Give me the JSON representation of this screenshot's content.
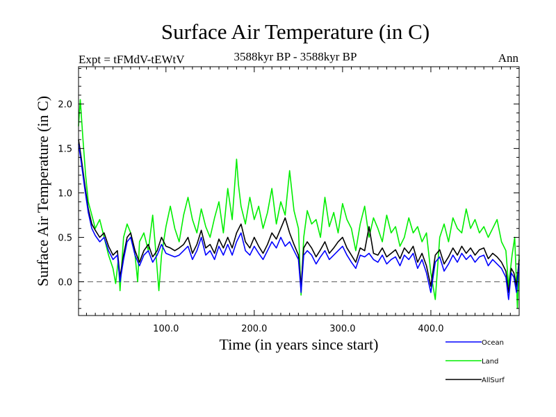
{
  "chart_data": {
    "type": "line",
    "title": "Surface Air Temperature (in C)",
    "subtitle_left": "Expt = tFMdV-tEWtV",
    "subtitle_center": "3588kyr BP - 3588kyr BP",
    "subtitle_right": "Ann",
    "xlabel": "Time (in years since start)",
    "ylabel": "Surface Air Temperature (in C)",
    "xlim": [
      1,
      500
    ],
    "ylim": [
      -0.38,
      2.42
    ],
    "xticks": [
      100,
      200,
      300,
      400
    ],
    "xtick_labels": [
      "100.0",
      "200.0",
      "300.0",
      "400.0"
    ],
    "yticks": [
      0.0,
      0.5,
      1.0,
      1.5,
      2.0
    ],
    "ytick_labels": [
      "0.0",
      "0.5",
      "1.0",
      "1.5",
      "2.0"
    ],
    "reference_line": 0.0,
    "legend_position": "bottom-right",
    "series": [
      {
        "name": "Ocean",
        "color": "#0000ff",
        "x": [
          1,
          4,
          8,
          12,
          16,
          20,
          25,
          30,
          35,
          40,
          45,
          48,
          52,
          56,
          60,
          65,
          70,
          75,
          80,
          85,
          90,
          95,
          100,
          105,
          110,
          115,
          120,
          125,
          130,
          135,
          140,
          145,
          150,
          155,
          160,
          165,
          170,
          175,
          180,
          185,
          190,
          195,
          200,
          205,
          210,
          215,
          220,
          225,
          230,
          235,
          240,
          245,
          250,
          253,
          256,
          260,
          265,
          270,
          275,
          280,
          285,
          290,
          295,
          300,
          305,
          310,
          315,
          320,
          325,
          330,
          335,
          340,
          345,
          350,
          355,
          360,
          365,
          370,
          375,
          380,
          385,
          390,
          395,
          400,
          405,
          410,
          415,
          420,
          425,
          430,
          435,
          440,
          445,
          450,
          455,
          460,
          465,
          470,
          475,
          480,
          485,
          488,
          491,
          494,
          497,
          500
        ],
        "values": [
          1.55,
          1.35,
          1.05,
          0.78,
          0.6,
          0.52,
          0.45,
          0.5,
          0.35,
          0.25,
          0.3,
          0.0,
          0.25,
          0.45,
          0.5,
          0.3,
          0.18,
          0.3,
          0.35,
          0.22,
          0.3,
          0.42,
          0.32,
          0.3,
          0.28,
          0.3,
          0.35,
          0.4,
          0.25,
          0.35,
          0.5,
          0.3,
          0.35,
          0.25,
          0.4,
          0.3,
          0.42,
          0.3,
          0.45,
          0.55,
          0.35,
          0.3,
          0.4,
          0.32,
          0.25,
          0.35,
          0.45,
          0.38,
          0.5,
          0.4,
          0.45,
          0.35,
          0.25,
          -0.12,
          0.3,
          0.35,
          0.3,
          0.2,
          0.28,
          0.35,
          0.25,
          0.3,
          0.35,
          0.4,
          0.3,
          0.22,
          0.15,
          0.3,
          0.28,
          0.32,
          0.25,
          0.22,
          0.3,
          0.2,
          0.25,
          0.28,
          0.18,
          0.3,
          0.25,
          0.32,
          0.15,
          0.25,
          0.1,
          -0.12,
          0.22,
          0.28,
          0.12,
          0.2,
          0.3,
          0.22,
          0.32,
          0.25,
          0.3,
          0.22,
          0.28,
          0.3,
          0.18,
          0.25,
          0.2,
          0.15,
          0.05,
          -0.2,
          0.1,
          0.05,
          -0.12,
          0.2
        ]
      },
      {
        "name": "Land",
        "color": "#00ee00",
        "x": [
          1,
          3,
          6,
          9,
          12,
          16,
          20,
          25,
          30,
          35,
          40,
          43,
          46,
          48,
          52,
          56,
          60,
          65,
          68,
          70,
          75,
          80,
          85,
          88,
          92,
          95,
          100,
          105,
          110,
          115,
          120,
          125,
          130,
          135,
          140,
          145,
          150,
          155,
          160,
          165,
          170,
          175,
          180,
          182,
          185,
          190,
          195,
          200,
          205,
          210,
          215,
          220,
          225,
          230,
          235,
          240,
          245,
          250,
          253,
          256,
          260,
          265,
          270,
          275,
          280,
          285,
          290,
          295,
          300,
          305,
          310,
          315,
          320,
          325,
          330,
          335,
          340,
          345,
          350,
          355,
          360,
          365,
          370,
          375,
          380,
          385,
          390,
          395,
          400,
          405,
          410,
          415,
          420,
          425,
          430,
          435,
          440,
          445,
          450,
          455,
          460,
          465,
          470,
          475,
          480,
          485,
          488,
          492,
          495,
          498,
          500
        ],
        "values": [
          1.75,
          2.05,
          1.6,
          1.2,
          0.9,
          0.75,
          0.6,
          0.7,
          0.5,
          0.3,
          0.15,
          -0.02,
          0.25,
          -0.1,
          0.5,
          0.65,
          0.55,
          0.3,
          0.0,
          0.45,
          0.55,
          0.35,
          0.75,
          0.4,
          -0.1,
          0.3,
          0.62,
          0.85,
          0.6,
          0.45,
          0.75,
          0.95,
          0.7,
          0.55,
          0.82,
          0.62,
          0.5,
          0.72,
          0.9,
          0.55,
          1.05,
          0.7,
          1.38,
          1.1,
          0.85,
          0.65,
          0.95,
          0.7,
          0.85,
          0.6,
          0.78,
          1.05,
          0.65,
          0.9,
          0.75,
          1.25,
          0.8,
          0.6,
          -0.15,
          0.5,
          0.8,
          0.65,
          0.7,
          0.5,
          0.95,
          0.62,
          0.78,
          0.55,
          0.88,
          0.7,
          0.6,
          0.35,
          0.65,
          0.85,
          0.5,
          0.72,
          0.6,
          0.45,
          0.75,
          0.55,
          0.62,
          0.4,
          0.5,
          0.72,
          0.55,
          0.62,
          0.45,
          0.55,
          0.1,
          -0.2,
          0.5,
          0.65,
          0.45,
          0.72,
          0.6,
          0.55,
          0.82,
          0.6,
          0.7,
          0.55,
          0.62,
          0.5,
          0.6,
          0.7,
          0.45,
          0.35,
          -0.05,
          0.3,
          0.5,
          -0.3,
          0.3
        ]
      },
      {
        "name": "AllSurf",
        "color": "#000000",
        "x": [
          1,
          4,
          8,
          12,
          16,
          20,
          25,
          30,
          35,
          40,
          45,
          48,
          52,
          56,
          60,
          65,
          70,
          75,
          80,
          85,
          90,
          95,
          100,
          105,
          110,
          115,
          120,
          125,
          130,
          135,
          140,
          145,
          150,
          155,
          160,
          165,
          170,
          175,
          180,
          185,
          190,
          195,
          200,
          205,
          210,
          215,
          220,
          225,
          230,
          235,
          240,
          245,
          250,
          253,
          256,
          260,
          265,
          270,
          275,
          280,
          285,
          290,
          295,
          300,
          305,
          310,
          315,
          320,
          325,
          330,
          335,
          340,
          345,
          350,
          355,
          360,
          365,
          370,
          375,
          380,
          385,
          390,
          395,
          400,
          405,
          410,
          415,
          420,
          425,
          430,
          435,
          440,
          445,
          450,
          455,
          460,
          465,
          470,
          475,
          480,
          485,
          488,
          491,
          494,
          497,
          500
        ],
        "values": [
          1.6,
          1.4,
          1.1,
          0.82,
          0.65,
          0.58,
          0.5,
          0.55,
          0.4,
          0.3,
          0.35,
          0.05,
          0.3,
          0.5,
          0.55,
          0.35,
          0.22,
          0.35,
          0.42,
          0.28,
          0.35,
          0.5,
          0.4,
          0.38,
          0.35,
          0.38,
          0.42,
          0.5,
          0.32,
          0.42,
          0.58,
          0.38,
          0.42,
          0.32,
          0.48,
          0.38,
          0.5,
          0.38,
          0.55,
          0.65,
          0.45,
          0.38,
          0.5,
          0.4,
          0.32,
          0.42,
          0.55,
          0.48,
          0.6,
          0.72,
          0.55,
          0.42,
          0.3,
          -0.05,
          0.38,
          0.45,
          0.38,
          0.28,
          0.36,
          0.45,
          0.32,
          0.38,
          0.45,
          0.5,
          0.38,
          0.3,
          0.22,
          0.38,
          0.35,
          0.62,
          0.32,
          0.3,
          0.38,
          0.28,
          0.32,
          0.36,
          0.26,
          0.38,
          0.32,
          0.4,
          0.22,
          0.32,
          0.18,
          -0.05,
          0.3,
          0.36,
          0.2,
          0.28,
          0.38,
          0.3,
          0.4,
          0.32,
          0.38,
          0.3,
          0.36,
          0.38,
          0.26,
          0.32,
          0.28,
          0.22,
          0.12,
          -0.12,
          0.15,
          0.1,
          -0.05,
          0.25
        ]
      }
    ]
  }
}
